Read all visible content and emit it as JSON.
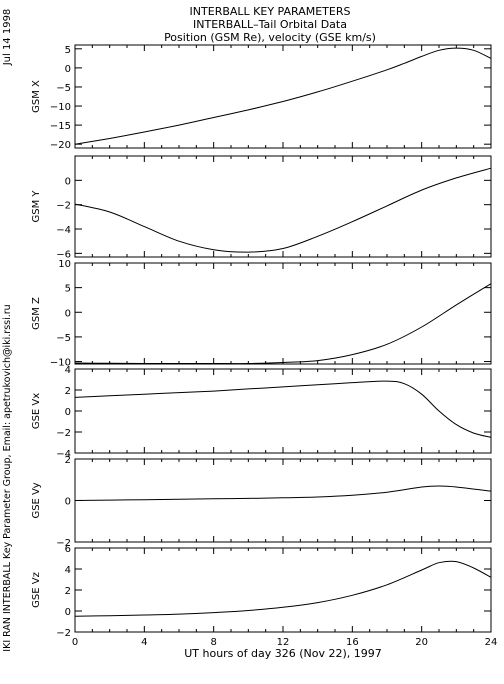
{
  "header": {
    "title": "INTERBALL KEY PARAMETERS",
    "subtitle": "INTERBALL–Tail Orbital Data",
    "subtitle2": "Position (GSM Re), velocity (GSE km/s)"
  },
  "side": {
    "date": "Jul 14 1998",
    "credit": "IKI RAN INTERBALL Key Parameter Group, Email: apetrukovich@iki.rssi.ru"
  },
  "chart_data": {
    "type": "line",
    "xlabel": "UT hours of day 326 (Nov 22), 1997",
    "xlim": [
      0,
      24
    ],
    "xticks": [
      0,
      4,
      8,
      12,
      16,
      20,
      24
    ],
    "panels": [
      {
        "ylabel": "GSM X",
        "ylim": [
          -21,
          6
        ],
        "yticks": [
          5,
          0,
          -5,
          -10,
          -15,
          -20
        ],
        "x": [
          0,
          2,
          4,
          6,
          8,
          10,
          12,
          14,
          16,
          18,
          19,
          20,
          21,
          22,
          23,
          24
        ],
        "values": [
          -20,
          -18.5,
          -16.8,
          -15,
          -13,
          -11,
          -8.8,
          -6.3,
          -3.5,
          -0.5,
          1.2,
          3,
          4.6,
          5.2,
          4.6,
          2.5
        ]
      },
      {
        "ylabel": "GSM Y",
        "ylim": [
          -6.3,
          2
        ],
        "yticks": [
          0,
          -2,
          -4,
          -6
        ],
        "x": [
          0,
          2,
          4,
          6,
          8,
          10,
          12,
          14,
          16,
          18,
          20,
          22,
          24
        ],
        "values": [
          -1.95,
          -2.6,
          -3.8,
          -5,
          -5.7,
          -5.9,
          -5.6,
          -4.6,
          -3.4,
          -2.1,
          -0.8,
          0.2,
          1.0
        ]
      },
      {
        "ylabel": "GSM Z",
        "ylim": [
          -10.5,
          10
        ],
        "yticks": [
          10,
          5,
          0,
          -5,
          -10
        ],
        "x": [
          0,
          2,
          4,
          6,
          8,
          10,
          12,
          14,
          16,
          18,
          20,
          22,
          24
        ],
        "values": [
          -10.3,
          -10.35,
          -10.4,
          -10.4,
          -10.4,
          -10.4,
          -10.2,
          -9.8,
          -8.6,
          -6.5,
          -3,
          1.5,
          5.8
        ]
      },
      {
        "ylabel": "GSE Vx",
        "ylim": [
          -4,
          4
        ],
        "yticks": [
          4,
          2,
          0,
          -2,
          -4
        ],
        "x": [
          0,
          2,
          4,
          6,
          8,
          10,
          12,
          14,
          16,
          18,
          19,
          20,
          21,
          22,
          23,
          24
        ],
        "values": [
          1.3,
          1.45,
          1.6,
          1.75,
          1.9,
          2.1,
          2.3,
          2.5,
          2.7,
          2.85,
          2.6,
          1.6,
          0,
          -1.3,
          -2.1,
          -2.5
        ]
      },
      {
        "ylabel": "GSE Vy",
        "ylim": [
          -2,
          2
        ],
        "yticks": [
          2,
          0,
          -2
        ],
        "x": [
          0,
          2,
          4,
          6,
          8,
          10,
          12,
          14,
          16,
          18,
          20,
          21,
          22,
          24
        ],
        "values": [
          0,
          0.02,
          0.04,
          0.06,
          0.08,
          0.1,
          0.13,
          0.17,
          0.25,
          0.4,
          0.65,
          0.7,
          0.65,
          0.45
        ]
      },
      {
        "ylabel": "GSE Vz",
        "ylim": [
          -2,
          6
        ],
        "yticks": [
          6,
          4,
          2,
          0,
          -2
        ],
        "x": [
          0,
          2,
          4,
          6,
          8,
          10,
          12,
          14,
          16,
          18,
          20,
          21,
          22,
          23,
          24
        ],
        "values": [
          -0.5,
          -0.45,
          -0.38,
          -0.3,
          -0.15,
          0.05,
          0.35,
          0.8,
          1.5,
          2.5,
          3.9,
          4.6,
          4.7,
          4.1,
          3.2
        ]
      }
    ]
  }
}
